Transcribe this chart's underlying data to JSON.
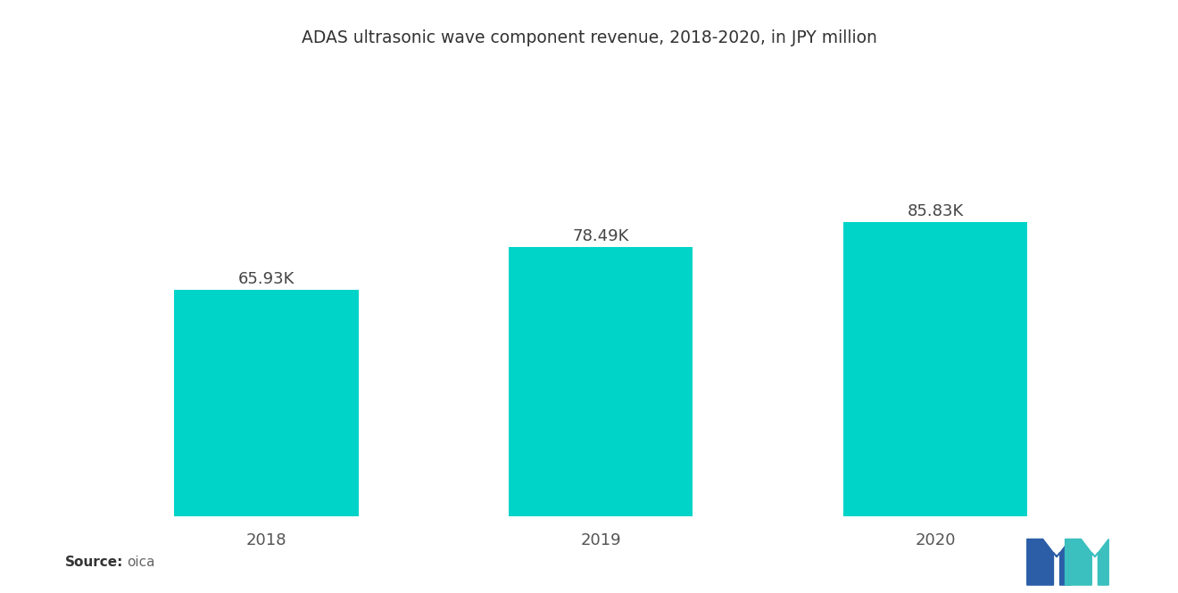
{
  "title": "ADAS ultrasonic wave component revenue, 2018-2020, in JPY million",
  "categories": [
    "2018",
    "2019",
    "2020"
  ],
  "values": [
    65930,
    78490,
    85830
  ],
  "labels": [
    "65.93K",
    "78.49K",
    "85.83K"
  ],
  "bar_color": "#00D4C8",
  "background_color": "#ffffff",
  "source_label": "Source:",
  "source_value": "oica",
  "title_fontsize": 13.5,
  "label_fontsize": 13,
  "tick_fontsize": 13,
  "source_fontsize": 11,
  "bar_width": 0.55,
  "ylim_max_factor": 1.25
}
